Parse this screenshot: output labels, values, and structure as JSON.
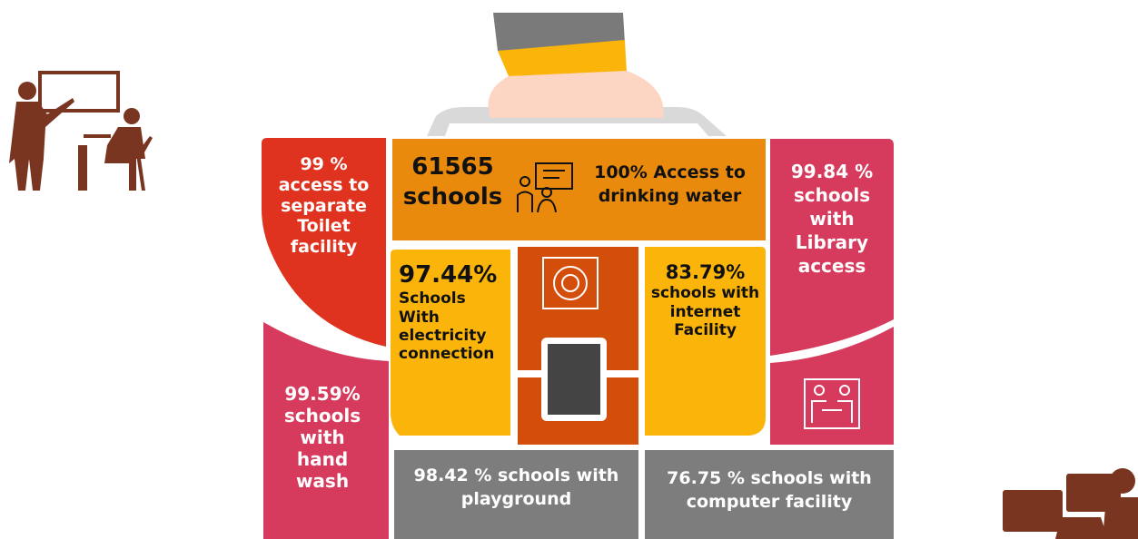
{
  "blocks": [
    {
      "lines": [
        "99 %",
        "access to",
        "separate",
        "Toilet",
        "facility"
      ]
    },
    {
      "lines": [
        "99.59%",
        "schools",
        "with",
        "hand",
        "wash"
      ]
    },
    {
      "lines": [
        "61565",
        "schools"
      ]
    },
    {
      "lines": [
        "100% Access to",
        "drinking water"
      ]
    },
    {
      "lines": [
        "97.44%",
        "Schools",
        "With",
        "electricity",
        "connection"
      ]
    },
    {
      "lines": [
        "83.79%",
        "schools with",
        "internet",
        "Facility"
      ]
    },
    {
      "lines": [
        "99.84 %",
        "schools",
        "with",
        "Library",
        "access"
      ]
    },
    {
      "lines": [
        "98.42 % schools with",
        "playground"
      ]
    },
    {
      "lines": [
        "76.75 % schools with",
        "computer facility"
      ]
    }
  ]
}
